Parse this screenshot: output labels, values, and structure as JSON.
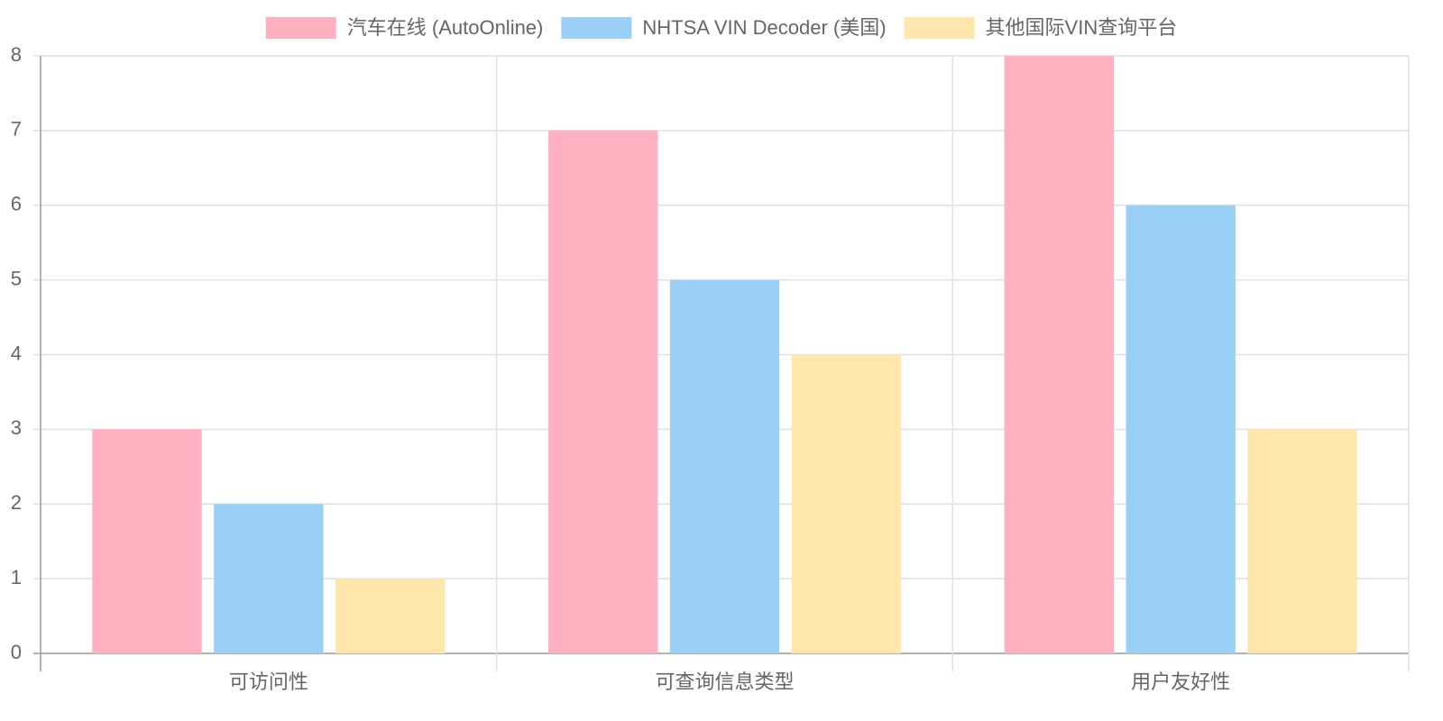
{
  "chart_data": {
    "type": "bar",
    "categories": [
      "可访问性",
      "可查询信息类型",
      "用户友好性"
    ],
    "series": [
      {
        "name": "汽车在线 (AutoOnline)",
        "color": "#ffb1c1",
        "values": [
          3,
          7,
          8
        ]
      },
      {
        "name": "NHTSA VIN Decoder (美国)",
        "color": "#9ad0f5",
        "values": [
          2,
          5,
          6
        ]
      },
      {
        "name": "其他国际VIN查询平台",
        "color": "#ffe6aa",
        "values": [
          1,
          4,
          3
        ]
      }
    ],
    "ylim": [
      0,
      8
    ],
    "yticks": [
      0,
      1,
      2,
      3,
      4,
      5,
      6,
      7,
      8
    ],
    "grid": true,
    "legend": "top"
  }
}
